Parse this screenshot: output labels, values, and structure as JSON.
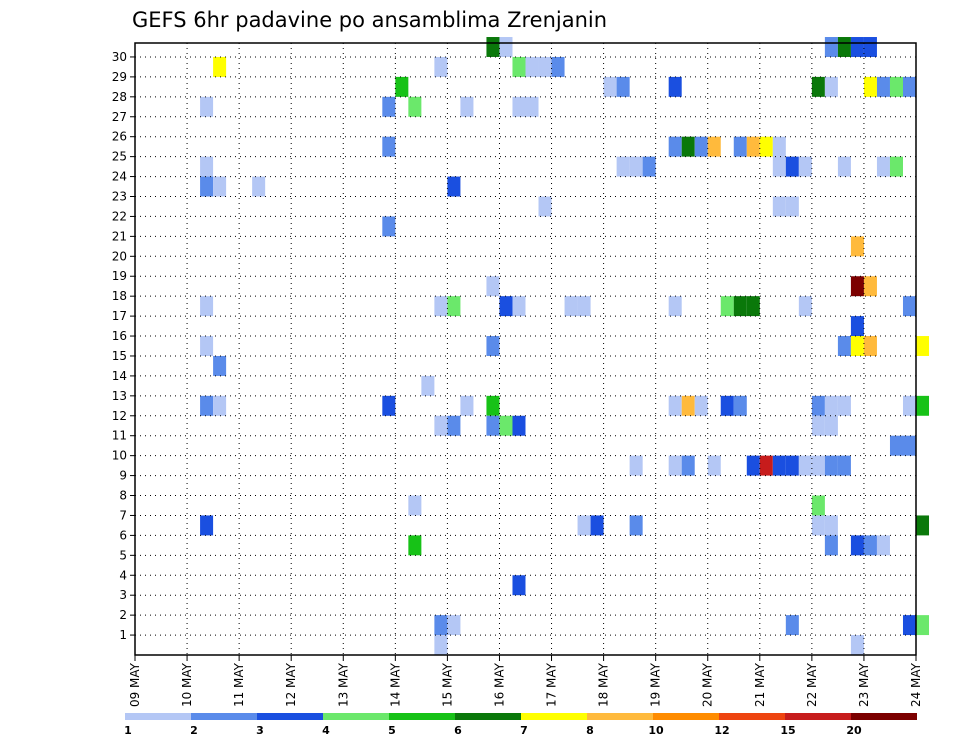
{
  "chart_data": {
    "type": "heatmap",
    "title": "GEFS 6hr padavine po ansamblima Zrenjanin",
    "x_tick_labels": [
      "09 MAY",
      "10 MAY",
      "11 MAY",
      "12 MAY",
      "13 MAY",
      "14 MAY",
      "15 MAY",
      "16 MAY",
      "17 MAY",
      "18 MAY",
      "19 MAY",
      "20 MAY",
      "21 MAY",
      "22 MAY",
      "23 MAY",
      "24 MAY"
    ],
    "y_range": [
      0,
      30
    ],
    "y_ticks": [
      1,
      2,
      3,
      4,
      5,
      6,
      7,
      8,
      9,
      10,
      11,
      12,
      13,
      14,
      15,
      16,
      17,
      18,
      19,
      20,
      21,
      22,
      23,
      24,
      25,
      26,
      27,
      28,
      29,
      30
    ],
    "grid": true,
    "legend": {
      "placement": "bottom",
      "labels": [
        "1",
        "2",
        "3",
        "4",
        "5",
        "6",
        "7",
        "8",
        "10",
        "12",
        "15",
        "20"
      ],
      "colors": [
        "#b4c7f5",
        "#5a8bea",
        "#1a4fe0",
        "#6be86b",
        "#17c217",
        "#0a780a",
        "#ffff00",
        "#ffba3c",
        "#ff8c00",
        "#ee4410",
        "#c71c1c",
        "#7c0000"
      ]
    },
    "cells": [
      {
        "t": 27.0,
        "m": 30,
        "c": 5
      },
      {
        "t": 28.0,
        "m": 30,
        "c": 0
      },
      {
        "t": 53.0,
        "m": 30,
        "c": 1
      },
      {
        "t": 54.0,
        "m": 30,
        "c": 5
      },
      {
        "t": 55.0,
        "m": 30,
        "c": 2
      },
      {
        "t": 56.0,
        "m": 30,
        "c": 2
      },
      {
        "t": 6.0,
        "m": 29,
        "c": 6
      },
      {
        "t": 23.0,
        "m": 29,
        "c": 0
      },
      {
        "t": 29.0,
        "m": 29,
        "c": 3
      },
      {
        "t": 30.0,
        "m": 29,
        "c": 0
      },
      {
        "t": 31.0,
        "m": 29,
        "c": 0
      },
      {
        "t": 32.0,
        "m": 29,
        "c": 1
      },
      {
        "t": 20.0,
        "m": 28,
        "c": 4
      },
      {
        "t": 36.0,
        "m": 28,
        "c": 0
      },
      {
        "t": 37.0,
        "m": 28,
        "c": 1
      },
      {
        "t": 41.0,
        "m": 28,
        "c": 2
      },
      {
        "t": 52.0,
        "m": 28,
        "c": 5
      },
      {
        "t": 53.0,
        "m": 28,
        "c": 0
      },
      {
        "t": 56.0,
        "m": 28,
        "c": 6
      },
      {
        "t": 57.0,
        "m": 28,
        "c": 1
      },
      {
        "t": 58.0,
        "m": 28,
        "c": 3
      },
      {
        "t": 59.0,
        "m": 28,
        "c": 1
      },
      {
        "t": 5.0,
        "m": 27,
        "c": 0
      },
      {
        "t": 19.0,
        "m": 27,
        "c": 1
      },
      {
        "t": 21.0,
        "m": 27,
        "c": 3
      },
      {
        "t": 25.0,
        "m": 27,
        "c": 0
      },
      {
        "t": 29.0,
        "m": 27,
        "c": 0
      },
      {
        "t": 30.0,
        "m": 27,
        "c": 0
      },
      {
        "t": 19.0,
        "m": 25,
        "c": 1
      },
      {
        "t": 41.0,
        "m": 25,
        "c": 1
      },
      {
        "t": 42.0,
        "m": 25,
        "c": 5
      },
      {
        "t": 43.0,
        "m": 25,
        "c": 1
      },
      {
        "t": 44.0,
        "m": 25,
        "c": 7
      },
      {
        "t": 46.0,
        "m": 25,
        "c": 1
      },
      {
        "t": 47.0,
        "m": 25,
        "c": 7
      },
      {
        "t": 48.0,
        "m": 25,
        "c": 6
      },
      {
        "t": 49.0,
        "m": 25,
        "c": 0
      },
      {
        "t": 5.0,
        "m": 24,
        "c": 0
      },
      {
        "t": 37.0,
        "m": 24,
        "c": 0
      },
      {
        "t": 38.0,
        "m": 24,
        "c": 0
      },
      {
        "t": 39.0,
        "m": 24,
        "c": 1
      },
      {
        "t": 49.0,
        "m": 24,
        "c": 0
      },
      {
        "t": 50.0,
        "m": 24,
        "c": 2
      },
      {
        "t": 51.0,
        "m": 24,
        "c": 0
      },
      {
        "t": 54.0,
        "m": 24,
        "c": 0
      },
      {
        "t": 57.0,
        "m": 24,
        "c": 0
      },
      {
        "t": 58.0,
        "m": 24,
        "c": 3
      },
      {
        "t": 5.0,
        "m": 23,
        "c": 1
      },
      {
        "t": 6.0,
        "m": 23,
        "c": 0
      },
      {
        "t": 9.0,
        "m": 23,
        "c": 0
      },
      {
        "t": 24.0,
        "m": 23,
        "c": 2
      },
      {
        "t": 31.0,
        "m": 22,
        "c": 0
      },
      {
        "t": 49.0,
        "m": 22,
        "c": 0
      },
      {
        "t": 50.0,
        "m": 22,
        "c": 0
      },
      {
        "t": 19.0,
        "m": 21,
        "c": 1
      },
      {
        "t": 55.0,
        "m": 20,
        "c": 7
      },
      {
        "t": 27.0,
        "m": 18,
        "c": 0
      },
      {
        "t": 55.0,
        "m": 18,
        "c": 11
      },
      {
        "t": 56.0,
        "m": 18,
        "c": 7
      },
      {
        "t": 5.0,
        "m": 17,
        "c": 0
      },
      {
        "t": 23.0,
        "m": 17,
        "c": 0
      },
      {
        "t": 24.0,
        "m": 17,
        "c": 3
      },
      {
        "t": 28.0,
        "m": 17,
        "c": 2
      },
      {
        "t": 29.0,
        "m": 17,
        "c": 0
      },
      {
        "t": 33.0,
        "m": 17,
        "c": 0
      },
      {
        "t": 34.0,
        "m": 17,
        "c": 0
      },
      {
        "t": 41.0,
        "m": 17,
        "c": 0
      },
      {
        "t": 45.0,
        "m": 17,
        "c": 3
      },
      {
        "t": 46.0,
        "m": 17,
        "c": 5
      },
      {
        "t": 47.0,
        "m": 17,
        "c": 5
      },
      {
        "t": 51.0,
        "m": 17,
        "c": 0
      },
      {
        "t": 59.0,
        "m": 17,
        "c": 1
      },
      {
        "t": 55.0,
        "m": 16,
        "c": 2
      },
      {
        "t": 5.0,
        "m": 15,
        "c": 0
      },
      {
        "t": 27.0,
        "m": 15,
        "c": 1
      },
      {
        "t": 54.0,
        "m": 15,
        "c": 1
      },
      {
        "t": 55.0,
        "m": 15,
        "c": 6
      },
      {
        "t": 56.0,
        "m": 15,
        "c": 7
      },
      {
        "t": 60.0,
        "m": 15,
        "c": 6
      },
      {
        "t": 6.0,
        "m": 14,
        "c": 1
      },
      {
        "t": 22.0,
        "m": 13,
        "c": 0
      },
      {
        "t": 5.0,
        "m": 12,
        "c": 1
      },
      {
        "t": 6.0,
        "m": 12,
        "c": 0
      },
      {
        "t": 19.0,
        "m": 12,
        "c": 2
      },
      {
        "t": 25.0,
        "m": 12,
        "c": 0
      },
      {
        "t": 27.0,
        "m": 12,
        "c": 4
      },
      {
        "t": 41.0,
        "m": 12,
        "c": 0
      },
      {
        "t": 42.0,
        "m": 12,
        "c": 7
      },
      {
        "t": 43.0,
        "m": 12,
        "c": 0
      },
      {
        "t": 45.0,
        "m": 12,
        "c": 2
      },
      {
        "t": 46.0,
        "m": 12,
        "c": 1
      },
      {
        "t": 52.0,
        "m": 12,
        "c": 1
      },
      {
        "t": 53.0,
        "m": 12,
        "c": 0
      },
      {
        "t": 54.0,
        "m": 12,
        "c": 0
      },
      {
        "t": 59.0,
        "m": 12,
        "c": 0
      },
      {
        "t": 60.0,
        "m": 12,
        "c": 4
      },
      {
        "t": 23.0,
        "m": 11,
        "c": 0
      },
      {
        "t": 24.0,
        "m": 11,
        "c": 1
      },
      {
        "t": 27.0,
        "m": 11,
        "c": 1
      },
      {
        "t": 28.0,
        "m": 11,
        "c": 3
      },
      {
        "t": 29.0,
        "m": 11,
        "c": 2
      },
      {
        "t": 52.0,
        "m": 11,
        "c": 0
      },
      {
        "t": 53.0,
        "m": 11,
        "c": 0
      },
      {
        "t": 58.0,
        "m": 10,
        "c": 1
      },
      {
        "t": 59.0,
        "m": 10,
        "c": 1
      },
      {
        "t": 38.0,
        "m": 9,
        "c": 0
      },
      {
        "t": 41.0,
        "m": 9,
        "c": 0
      },
      {
        "t": 42.0,
        "m": 9,
        "c": 1
      },
      {
        "t": 44.0,
        "m": 9,
        "c": 0
      },
      {
        "t": 47.0,
        "m": 9,
        "c": 2
      },
      {
        "t": 48.0,
        "m": 9,
        "c": 10
      },
      {
        "t": 49.0,
        "m": 9,
        "c": 2
      },
      {
        "t": 50.0,
        "m": 9,
        "c": 2
      },
      {
        "t": 51.0,
        "m": 9,
        "c": 0
      },
      {
        "t": 52.0,
        "m": 9,
        "c": 0
      },
      {
        "t": 53.0,
        "m": 9,
        "c": 1
      },
      {
        "t": 54.0,
        "m": 9,
        "c": 1
      },
      {
        "t": 21.0,
        "m": 7,
        "c": 0
      },
      {
        "t": 52.0,
        "m": 7,
        "c": 3
      },
      {
        "t": 5.0,
        "m": 6,
        "c": 2
      },
      {
        "t": 34.0,
        "m": 6,
        "c": 0
      },
      {
        "t": 35.0,
        "m": 6,
        "c": 2
      },
      {
        "t": 38.0,
        "m": 6,
        "c": 1
      },
      {
        "t": 52.0,
        "m": 6,
        "c": 0
      },
      {
        "t": 53.0,
        "m": 6,
        "c": 0
      },
      {
        "t": 60.0,
        "m": 6,
        "c": 5
      },
      {
        "t": 21.0,
        "m": 5,
        "c": 4
      },
      {
        "t": 53.0,
        "m": 5,
        "c": 1
      },
      {
        "t": 55.0,
        "m": 5,
        "c": 2
      },
      {
        "t": 56.0,
        "m": 5,
        "c": 1
      },
      {
        "t": 57.0,
        "m": 5,
        "c": 0
      },
      {
        "t": 29.0,
        "m": 3,
        "c": 2
      },
      {
        "t": 23.0,
        "m": 1,
        "c": 1
      },
      {
        "t": 24.0,
        "m": 1,
        "c": 0
      },
      {
        "t": 50.0,
        "m": 1,
        "c": 1
      },
      {
        "t": 59.0,
        "m": 1,
        "c": 2
      },
      {
        "t": 60.0,
        "m": 1,
        "c": 3
      },
      {
        "t": 23.0,
        "m": 0,
        "c": 0
      },
      {
        "t": 55.0,
        "m": 0,
        "c": 0
      }
    ]
  }
}
